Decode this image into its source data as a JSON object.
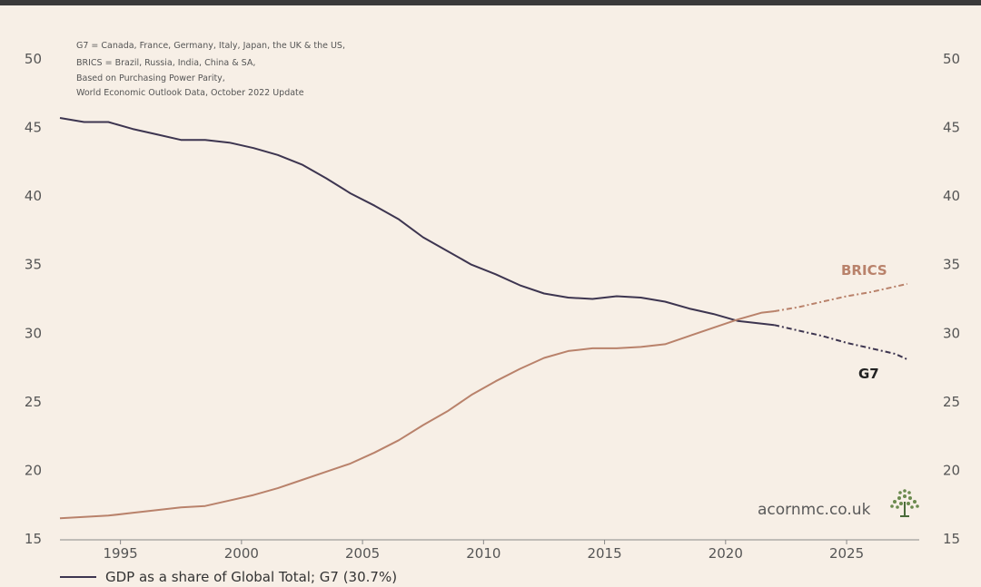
{
  "chart_data": {
    "type": "line",
    "notes": [
      "G7 = Canada, France, Germany, Italy, Japan, the UK & the US,",
      "BRICS = Brazil, Russia, India, China & SA,",
      "Based on Purchasing Power Parity,",
      "World Economic Outlook Data, October 2022 Update"
    ],
    "x_ticks": [
      "1995",
      "2000",
      "2005",
      "2010",
      "2015",
      "2020",
      "2025"
    ],
    "y_ticks": [
      "15",
      "20",
      "25",
      "30",
      "35",
      "40",
      "45",
      "50"
    ],
    "xlim": [
      1992.5,
      2028
    ],
    "ylim": [
      15,
      50
    ],
    "y_axis_both_sides": true,
    "grid": false,
    "projection_start": 2022,
    "series": [
      {
        "name": "G7",
        "color": "#3d3550",
        "points": [
          [
            1992.5,
            45.7
          ],
          [
            1993.5,
            45.4
          ],
          [
            1994.5,
            45.4
          ],
          [
            1995.5,
            44.9
          ],
          [
            1996.5,
            44.5
          ],
          [
            1997.5,
            44.1
          ],
          [
            1998.5,
            44.1
          ],
          [
            1999.5,
            43.9
          ],
          [
            2000.5,
            43.5
          ],
          [
            2001.5,
            43.0
          ],
          [
            2002.5,
            42.3
          ],
          [
            2003.5,
            41.3
          ],
          [
            2004.5,
            40.2
          ],
          [
            2005.5,
            39.3
          ],
          [
            2006.5,
            38.3
          ],
          [
            2007.5,
            37.0
          ],
          [
            2008.5,
            36.0
          ],
          [
            2009.5,
            35.0
          ],
          [
            2010.5,
            34.3
          ],
          [
            2011.5,
            33.5
          ],
          [
            2012.5,
            32.9
          ],
          [
            2013.5,
            32.6
          ],
          [
            2014.5,
            32.5
          ],
          [
            2015.5,
            32.7
          ],
          [
            2016.5,
            32.6
          ],
          [
            2017.5,
            32.3
          ],
          [
            2018.5,
            31.8
          ],
          [
            2019.5,
            31.4
          ],
          [
            2020.5,
            30.9
          ],
          [
            2021.5,
            30.7
          ],
          [
            2022,
            30.6
          ],
          [
            2023,
            30.2
          ],
          [
            2024,
            29.8
          ],
          [
            2025,
            29.3
          ],
          [
            2026,
            28.9
          ],
          [
            2027,
            28.5
          ],
          [
            2027.5,
            28.1
          ]
        ]
      },
      {
        "name": "BRICS",
        "color": "#b9826b",
        "points": [
          [
            1992.5,
            16.5
          ],
          [
            1993.5,
            16.6
          ],
          [
            1994.5,
            16.7
          ],
          [
            1995.5,
            16.9
          ],
          [
            1996.5,
            17.1
          ],
          [
            1997.5,
            17.3
          ],
          [
            1998.5,
            17.4
          ],
          [
            1999.5,
            17.8
          ],
          [
            2000.5,
            18.2
          ],
          [
            2001.5,
            18.7
          ],
          [
            2002.5,
            19.3
          ],
          [
            2003.5,
            19.9
          ],
          [
            2004.5,
            20.5
          ],
          [
            2005.5,
            21.3
          ],
          [
            2006.5,
            22.2
          ],
          [
            2007.5,
            23.3
          ],
          [
            2008.5,
            24.3
          ],
          [
            2009.5,
            25.5
          ],
          [
            2010.5,
            26.5
          ],
          [
            2011.5,
            27.4
          ],
          [
            2012.5,
            28.2
          ],
          [
            2013.5,
            28.7
          ],
          [
            2014.5,
            28.9
          ],
          [
            2015.5,
            28.9
          ],
          [
            2016.5,
            29.0
          ],
          [
            2017.5,
            29.2
          ],
          [
            2018.5,
            29.8
          ],
          [
            2019.5,
            30.4
          ],
          [
            2020.5,
            31.0
          ],
          [
            2021.5,
            31.5
          ],
          [
            2022,
            31.6
          ],
          [
            2023,
            31.9
          ],
          [
            2024,
            32.3
          ],
          [
            2025,
            32.7
          ],
          [
            2026,
            33.0
          ],
          [
            2027,
            33.4
          ],
          [
            2027.5,
            33.6
          ]
        ]
      }
    ],
    "labels": {
      "brics": "BRICS",
      "g7": "G7"
    },
    "watermark": "acornmc.co.uk",
    "legend": "GDP as a share of Global Total; G7 (30.7%)"
  }
}
